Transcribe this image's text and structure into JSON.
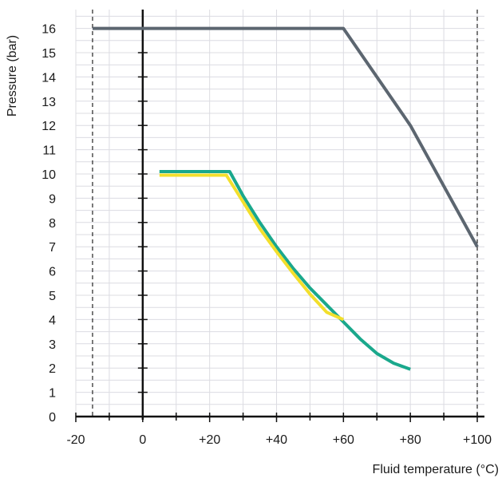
{
  "chart_data": {
    "type": "line",
    "xlabel": "Fluid temperature (°C)",
    "ylabel": "Pressure (bar)",
    "xlim": [
      -20,
      102
    ],
    "ylim": [
      0,
      16.8
    ],
    "xticks": [
      -20,
      0,
      20,
      40,
      60,
      80,
      100
    ],
    "xtick_labels": [
      "-20",
      "0",
      "+20",
      "+40",
      "+60",
      "+80",
      "+100"
    ],
    "yticks": [
      0,
      1,
      2,
      3,
      4,
      5,
      6,
      7,
      8,
      9,
      10,
      11,
      12,
      13,
      14,
      15,
      16
    ],
    "ytick_labels": [
      "0",
      "1",
      "2",
      "3",
      "4",
      "5",
      "6",
      "7",
      "8",
      "9",
      "10",
      "11",
      "12",
      "13",
      "14",
      "15",
      "16"
    ],
    "grid": true,
    "reference_lines": [
      {
        "x": -15,
        "style": "dashed"
      },
      {
        "x": 100,
        "style": "dashed"
      }
    ],
    "series": [
      {
        "color": "#5c6670",
        "x": [
          -15,
          60,
          80,
          100
        ],
        "y": [
          16,
          16,
          12,
          7
        ]
      },
      {
        "color": "#1aa88c",
        "x": [
          5,
          26,
          30,
          35,
          40,
          45,
          50,
          55,
          60,
          65,
          70,
          75,
          80
        ],
        "y": [
          10.1,
          10.1,
          9.1,
          8.0,
          7.0,
          6.1,
          5.3,
          4.6,
          3.9,
          3.2,
          2.6,
          2.2,
          1.95
        ]
      },
      {
        "color": "#f2df2c",
        "x": [
          5,
          25,
          30,
          35,
          40,
          45,
          50,
          55,
          60
        ],
        "y": [
          9.95,
          9.95,
          8.85,
          7.75,
          6.8,
          5.9,
          5.05,
          4.3,
          4.0
        ]
      }
    ]
  }
}
